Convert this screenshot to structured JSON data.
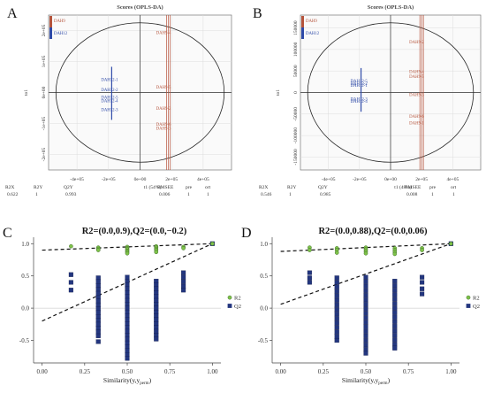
{
  "chart_data": [
    {
      "panel": "A",
      "type": "scatter",
      "title": "Scores (OPLS-DA)",
      "ylabel": "to1",
      "xlabel": "t1 (54%)",
      "x_ticks": [
        "-4e+05",
        "-2e+05",
        "0e+00",
        "2e+05",
        "4e+05"
      ],
      "y_ticks": [
        "2e+05",
        "1e+05",
        "0e+00",
        "-1e+05",
        "-2e+05"
      ],
      "xlim": [
        -580000,
        580000
      ],
      "ylim": [
        -250000,
        250000
      ],
      "legend": [
        "DAH9",
        "DAH12"
      ],
      "colors": {
        "DAH9": "#b5533b",
        "DAH12": "#2e4aa8"
      },
      "series": [
        {
          "name": "DAH9",
          "points": [
            {
              "label": "DAH9-4",
              "x": 180000,
              "y": 195000
            },
            {
              "label": "DAH9-5",
              "x": 180000,
              "y": 18000
            },
            {
              "label": "DAH9-2",
              "x": 180000,
              "y": -50000
            },
            {
              "label": "DAH9-6",
              "x": 180000,
              "y": -102000
            },
            {
              "label": "DAH9-3",
              "x": 180000,
              "y": -114000
            }
          ]
        },
        {
          "name": "DAH12",
          "points": [
            {
              "label": "DAH12-1",
              "x": -180000,
              "y": 43000
            },
            {
              "label": "DAH12-2",
              "x": -180000,
              "y": 10000
            },
            {
              "label": "DAH12-5",
              "x": -180000,
              "y": -14000
            },
            {
              "label": "DAH12-4",
              "x": -180000,
              "y": -26000
            },
            {
              "label": "DAH12-3",
              "x": -180000,
              "y": -54000
            }
          ]
        }
      ],
      "stats": {
        "headers": [
          "R2X",
          "R2Y",
          "Q2Y",
          "RMSEE",
          "pre",
          "ort"
        ],
        "values": [
          "0.622",
          "1",
          "0.993",
          "0.006",
          "1",
          "1"
        ]
      }
    },
    {
      "panel": "B",
      "type": "scatter",
      "title": "Scores (OPLS-DA)",
      "ylabel": "to1",
      "xlabel": "t1 (48%)",
      "x_ticks": [
        "-4e+05",
        "-2e+05",
        "0e+00",
        "2e+05",
        "4e+05"
      ],
      "y_ticks": [
        "150000",
        "100000",
        "50000",
        "0",
        "-50000",
        "-100000",
        "-150000"
      ],
      "xlim": [
        -580000,
        580000
      ],
      "ylim": [
        -180000,
        180000
      ],
      "legend": [
        "DAH9",
        "DAH12"
      ],
      "colors": {
        "DAH9": "#b5533b",
        "DAH12": "#2e4aa8"
      },
      "series": [
        {
          "name": "DAH9",
          "points": [
            {
              "label": "DAH9-2",
              "x": 200000,
              "y": 118000
            },
            {
              "label": "DAH9-4",
              "x": 200000,
              "y": 49000
            },
            {
              "label": "DAH9-5",
              "x": 200000,
              "y": 38000
            },
            {
              "label": "DAH9-3",
              "x": 200000,
              "y": -4000
            },
            {
              "label": "DAH9-6",
              "x": 200000,
              "y": -55000
            },
            {
              "label": "DAH9-1",
              "x": 200000,
              "y": -70000
            }
          ]
        },
        {
          "name": "DAH12",
          "points": [
            {
              "label": "DAH12-5",
              "x": -190000,
              "y": 28000
            },
            {
              "label": "DAH12-2",
              "x": -190000,
              "y": 22000
            },
            {
              "label": "DAH12-1",
              "x": -190000,
              "y": 18000
            },
            {
              "label": "DAH12-3",
              "x": -190000,
              "y": -14000
            },
            {
              "label": "DAH12-4",
              "x": -190000,
              "y": -20000
            }
          ]
        }
      ],
      "stats": {
        "headers": [
          "R2X",
          "R2Y",
          "Q2Y",
          "RMSEE",
          "pre",
          "ort"
        ],
        "values": [
          "0.546",
          "1",
          "0.985",
          "0.008",
          "1",
          "1"
        ]
      }
    },
    {
      "panel": "C",
      "type": "scatter",
      "title": "R2=(0.0,0.9),Q2=(0.0,−0.2)",
      "xlabel": "Similarity(y,y",
      "xlabel_sub": "perm",
      "x_ticks": [
        0.0,
        0.25,
        0.5,
        0.75,
        1.0
      ],
      "y_ticks": [
        -0.5,
        0.0,
        0.5,
        1.0
      ],
      "xlim": [
        -0.05,
        1.05
      ],
      "ylim": [
        -0.85,
        1.1
      ],
      "legend": [
        "R2",
        "Q2"
      ],
      "colors": {
        "R2": "#7ec24a",
        "Q2": "#23367f"
      },
      "r2_line": [
        [
          0,
          0.9
        ],
        [
          1,
          1
        ]
      ],
      "q2_line": [
        [
          0,
          -0.2
        ],
        [
          1,
          1
        ]
      ],
      "r2_points": [
        [
          0.17,
          0.96
        ],
        [
          0.33,
          0.94
        ],
        [
          0.33,
          0.92
        ],
        [
          0.33,
          0.9
        ],
        [
          0.5,
          0.95
        ],
        [
          0.5,
          0.93
        ],
        [
          0.5,
          0.91
        ],
        [
          0.5,
          0.89
        ],
        [
          0.5,
          0.87
        ],
        [
          0.5,
          0.85
        ],
        [
          0.67,
          0.96
        ],
        [
          0.67,
          0.94
        ],
        [
          0.67,
          0.92
        ],
        [
          0.67,
          0.9
        ],
        [
          0.67,
          0.87
        ],
        [
          0.83,
          0.95
        ],
        [
          0.83,
          0.93
        ],
        [
          1.0,
          1.0
        ]
      ],
      "q2_points": [
        [
          0.17,
          0.52
        ],
        [
          0.17,
          0.4
        ],
        [
          0.17,
          0.28
        ],
        [
          0.33,
          0.47
        ],
        [
          0.33,
          0.41
        ],
        [
          0.33,
          0.35
        ],
        [
          0.33,
          0.29
        ],
        [
          0.33,
          0.23
        ],
        [
          0.33,
          0.17
        ],
        [
          0.33,
          0.11
        ],
        [
          0.33,
          0.05
        ],
        [
          0.33,
          -0.01
        ],
        [
          0.33,
          -0.07
        ],
        [
          0.33,
          -0.13
        ],
        [
          0.33,
          -0.19
        ],
        [
          0.33,
          -0.25
        ],
        [
          0.33,
          -0.31
        ],
        [
          0.33,
          -0.37
        ],
        [
          0.33,
          -0.43
        ],
        [
          0.33,
          -0.52
        ],
        [
          0.5,
          0.48
        ],
        [
          0.5,
          0.42
        ],
        [
          0.5,
          0.36
        ],
        [
          0.5,
          0.3
        ],
        [
          0.5,
          0.24
        ],
        [
          0.5,
          0.18
        ],
        [
          0.5,
          0.12
        ],
        [
          0.5,
          0.06
        ],
        [
          0.5,
          0.0
        ],
        [
          0.5,
          -0.06
        ],
        [
          0.5,
          -0.12
        ],
        [
          0.5,
          -0.18
        ],
        [
          0.5,
          -0.24
        ],
        [
          0.5,
          -0.3
        ],
        [
          0.5,
          -0.36
        ],
        [
          0.5,
          -0.42
        ],
        [
          0.5,
          -0.48
        ],
        [
          0.5,
          -0.54
        ],
        [
          0.5,
          -0.6
        ],
        [
          0.5,
          -0.66
        ],
        [
          0.5,
          -0.72
        ],
        [
          0.5,
          -0.78
        ],
        [
          0.67,
          0.42
        ],
        [
          0.67,
          0.36
        ],
        [
          0.67,
          0.3
        ],
        [
          0.67,
          0.24
        ],
        [
          0.67,
          0.18
        ],
        [
          0.67,
          0.12
        ],
        [
          0.67,
          0.06
        ],
        [
          0.67,
          0.0
        ],
        [
          0.67,
          -0.06
        ],
        [
          0.67,
          -0.12
        ],
        [
          0.67,
          -0.18
        ],
        [
          0.67,
          -0.24
        ],
        [
          0.67,
          -0.3
        ],
        [
          0.67,
          -0.36
        ],
        [
          0.67,
          -0.42
        ],
        [
          0.67,
          -0.48
        ],
        [
          0.83,
          0.55
        ],
        [
          0.83,
          0.48
        ],
        [
          0.83,
          0.41
        ],
        [
          0.83,
          0.34
        ],
        [
          0.83,
          0.28
        ],
        [
          1.0,
          1.0
        ]
      ]
    },
    {
      "panel": "D",
      "type": "scatter",
      "title": "R2=(0.0,0.88),Q2=(0.0,0.06)",
      "xlabel": "Similarity(y,y",
      "xlabel_sub": "perm",
      "x_ticks": [
        0.0,
        0.25,
        0.5,
        0.75,
        1.0
      ],
      "y_ticks": [
        -0.5,
        0.0,
        0.5,
        1.0
      ],
      "xlim": [
        -0.05,
        1.05
      ],
      "ylim": [
        -0.85,
        1.1
      ],
      "legend": [
        "R2",
        "Q2"
      ],
      "colors": {
        "R2": "#7ec24a",
        "Q2": "#23367f"
      },
      "r2_line": [
        [
          0,
          0.88
        ],
        [
          1,
          1
        ]
      ],
      "q2_line": [
        [
          0,
          0.06
        ],
        [
          1,
          1
        ]
      ],
      "r2_points": [
        [
          0.17,
          0.94
        ],
        [
          0.17,
          0.9
        ],
        [
          0.33,
          0.93
        ],
        [
          0.33,
          0.9
        ],
        [
          0.33,
          0.86
        ],
        [
          0.5,
          0.94
        ],
        [
          0.5,
          0.91
        ],
        [
          0.5,
          0.88
        ],
        [
          0.5,
          0.85
        ],
        [
          0.67,
          0.93
        ],
        [
          0.67,
          0.9
        ],
        [
          0.67,
          0.87
        ],
        [
          0.67,
          0.84
        ],
        [
          0.83,
          0.93
        ],
        [
          0.83,
          0.9
        ],
        [
          1.0,
          1.0
        ]
      ],
      "q2_points": [
        [
          0.17,
          0.55
        ],
        [
          0.17,
          0.47
        ],
        [
          0.17,
          0.4
        ],
        [
          0.33,
          0.47
        ],
        [
          0.33,
          0.4
        ],
        [
          0.33,
          0.33
        ],
        [
          0.33,
          0.26
        ],
        [
          0.33,
          0.19
        ],
        [
          0.33,
          0.12
        ],
        [
          0.33,
          0.05
        ],
        [
          0.33,
          -0.02
        ],
        [
          0.33,
          -0.09
        ],
        [
          0.33,
          -0.16
        ],
        [
          0.33,
          -0.23
        ],
        [
          0.33,
          -0.3
        ],
        [
          0.33,
          -0.37
        ],
        [
          0.33,
          -0.44
        ],
        [
          0.33,
          -0.5
        ],
        [
          0.5,
          0.48
        ],
        [
          0.5,
          0.41
        ],
        [
          0.5,
          0.34
        ],
        [
          0.5,
          0.27
        ],
        [
          0.5,
          0.2
        ],
        [
          0.5,
          0.13
        ],
        [
          0.5,
          0.06
        ],
        [
          0.5,
          -0.01
        ],
        [
          0.5,
          -0.08
        ],
        [
          0.5,
          -0.15
        ],
        [
          0.5,
          -0.22
        ],
        [
          0.5,
          -0.29
        ],
        [
          0.5,
          -0.36
        ],
        [
          0.5,
          -0.43
        ],
        [
          0.5,
          -0.5
        ],
        [
          0.5,
          -0.57
        ],
        [
          0.5,
          -0.64
        ],
        [
          0.5,
          -0.7
        ],
        [
          0.67,
          0.42
        ],
        [
          0.67,
          0.35
        ],
        [
          0.67,
          0.28
        ],
        [
          0.67,
          0.21
        ],
        [
          0.67,
          0.14
        ],
        [
          0.67,
          0.07
        ],
        [
          0.67,
          0.0
        ],
        [
          0.67,
          -0.07
        ],
        [
          0.67,
          -0.14
        ],
        [
          0.67,
          -0.21
        ],
        [
          0.67,
          -0.28
        ],
        [
          0.67,
          -0.35
        ],
        [
          0.67,
          -0.42
        ],
        [
          0.67,
          -0.49
        ],
        [
          0.67,
          -0.56
        ],
        [
          0.67,
          -0.62
        ],
        [
          0.83,
          0.48
        ],
        [
          0.83,
          0.4
        ],
        [
          0.83,
          0.3
        ],
        [
          0.83,
          0.22
        ],
        [
          1.0,
          1.0
        ]
      ]
    }
  ]
}
